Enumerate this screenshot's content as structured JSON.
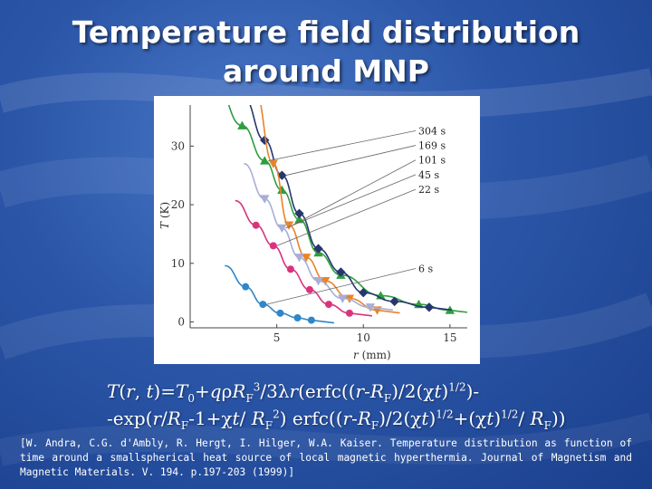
{
  "slide": {
    "title_line1": "Temperature field distribution",
    "title_line2": "around MNP",
    "formula": {
      "l1_a": "T",
      "l1_b": "(",
      "l1_c": "r",
      "l1_d": ", ",
      "l1_e": "t",
      "l1_f": ")=",
      "l1_g": "T",
      "l1_h": "0",
      "l1_i": "+",
      "l1_j": "q",
      "l1_k": "ρ",
      "l1_l": "R",
      "l1_m": "F",
      "l1_n": "3",
      "l1_o": "/3λ",
      "l1_p": "r",
      "l1_q": "(erfc((",
      "l1_r": "r",
      "l1_s": "-",
      "l1_t": "R",
      "l1_u": "F",
      "l1_v": ")/2(χ",
      "l1_w": "t",
      "l1_x": ")",
      "l1_y": "1/2",
      "l1_z": ")-",
      "l2_a": "-exp(",
      "l2_b": "r",
      "l2_c": "/",
      "l2_d": "R",
      "l2_e": "F",
      "l2_f": "-1+χ",
      "l2_g": "t",
      "l2_h": "/ ",
      "l2_i": "R",
      "l2_j": "F",
      "l2_k": "2",
      "l2_l": ") erfc((",
      "l2_m": "r",
      "l2_n": "-",
      "l2_o": "R",
      "l2_p": "F",
      "l2_q": ")/2(χ",
      "l2_r": "t",
      "l2_s": ")",
      "l2_t": "1/2",
      "l2_u": "+(χ",
      "l2_v": "t",
      "l2_w": ")",
      "l2_x": "1/2",
      "l2_y": "/ ",
      "l2_z": "R",
      "l2_aa": "F",
      "l2_ab": "))"
    },
    "citation": "[W. Andra, C.G. d'Ambly, R. Hergt, I. Hilger, W.A. Kaiser. Temperature distribution as function of time around a smallspherical heat source of local magnetic hyperthermia. Journal of Magnetism and Magnetic Materials. V. 194. p.197-203 (1999)]"
  },
  "chart_data": {
    "type": "scatter",
    "xlabel_var": "r",
    "xlabel_unit": " (mm)",
    "ylabel_var": "T",
    "ylabel_unit": " (K)",
    "xlim": [
      0,
      16
    ],
    "ylim": [
      -1,
      37
    ],
    "xticks": [
      5,
      10,
      15
    ],
    "yticks": [
      0,
      10,
      20,
      30
    ],
    "series": [
      {
        "name": "304 s",
        "color": "#2e9e3e",
        "marker": "triangle-up",
        "points": [
          [
            3.0,
            33.5
          ],
          [
            4.3,
            27.5
          ],
          [
            5.3,
            22.5
          ],
          [
            6.3,
            17.5
          ],
          [
            7.4,
            11.8
          ],
          [
            8.7,
            8.0
          ],
          [
            11.0,
            4.5
          ],
          [
            13.2,
            3.0
          ],
          [
            15.0,
            2.0
          ]
        ]
      },
      {
        "name": "169 s",
        "color": "#27366e",
        "marker": "diamond",
        "points": [
          [
            4.3,
            31.0
          ],
          [
            5.3,
            25.0
          ],
          [
            6.3,
            18.5
          ],
          [
            7.4,
            12.5
          ],
          [
            8.7,
            8.5
          ],
          [
            10.0,
            5.0
          ],
          [
            11.8,
            3.5
          ],
          [
            13.8,
            2.5
          ]
        ]
      },
      {
        "name": "101 s",
        "color": "#e8842a",
        "marker": "triangle-down",
        "points": [
          [
            4.8,
            27.0
          ],
          [
            5.7,
            16.5
          ],
          [
            6.7,
            11.0
          ],
          [
            7.8,
            7.0
          ],
          [
            9.2,
            4.0
          ],
          [
            10.8,
            2.0
          ]
        ]
      },
      {
        "name": "45 s",
        "color": "#a8aed8",
        "marker": "triangle-down",
        "points": [
          [
            4.3,
            21.0
          ],
          [
            5.3,
            16.0
          ],
          [
            6.3,
            11.0
          ],
          [
            7.4,
            7.0
          ],
          [
            8.8,
            4.0
          ],
          [
            10.4,
            2.5
          ]
        ]
      },
      {
        "name": "22 s",
        "color": "#d8347c",
        "marker": "circle",
        "points": [
          [
            3.8,
            16.5
          ],
          [
            4.8,
            13.0
          ],
          [
            5.8,
            9.0
          ],
          [
            6.9,
            5.5
          ],
          [
            8.0,
            3.0
          ],
          [
            9.2,
            1.5
          ]
        ]
      },
      {
        "name": "6 s",
        "color": "#2f86c8",
        "marker": "circle",
        "points": [
          [
            3.2,
            6.0
          ],
          [
            4.2,
            3.0
          ],
          [
            5.2,
            1.5
          ],
          [
            6.2,
            0.7
          ],
          [
            7.0,
            0.3
          ]
        ]
      }
    ],
    "legend": [
      {
        "label": "304 s",
        "y": 32.0
      },
      {
        "label": "169 s",
        "y": 29.5
      },
      {
        "label": "101 s",
        "y": 27.0
      },
      {
        "label": "45 s",
        "y": 24.5
      },
      {
        "label": "22 s",
        "y": 22.0
      },
      {
        "label": "6 s",
        "y": 8.5
      }
    ],
    "legend_placement": "top-right",
    "grid": false
  }
}
